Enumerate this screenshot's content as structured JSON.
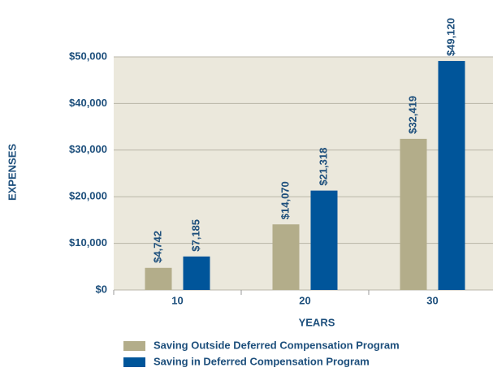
{
  "chart_data": {
    "type": "bar",
    "xlabel": "YEARS",
    "ylabel": "EXPENSES",
    "categories": [
      "10",
      "20",
      "30"
    ],
    "series": [
      {
        "name": "Saving Outside Deferred Compensation Program",
        "color": "#b3ad8a",
        "values": [
          4742,
          14070,
          32419
        ],
        "value_labels": [
          "$4,742",
          "$14,070",
          "$32,419"
        ]
      },
      {
        "name": "Saving in Deferred Compensation Program",
        "color": "#00559a",
        "values": [
          7185,
          21318,
          49120
        ],
        "value_labels": [
          "$7,185",
          "$21,318",
          "$49,120"
        ]
      }
    ],
    "ylim": [
      0,
      50000
    ],
    "yticks": [
      {
        "value": 0,
        "label": "$0"
      },
      {
        "value": 10000,
        "label": "$10,000"
      },
      {
        "value": 20000,
        "label": "$20,000"
      },
      {
        "value": 30000,
        "label": "$30,000"
      },
      {
        "value": 40000,
        "label": "$40,000"
      },
      {
        "value": 50000,
        "label": "$50,000"
      }
    ],
    "grid": true,
    "legend": "bottom"
  }
}
